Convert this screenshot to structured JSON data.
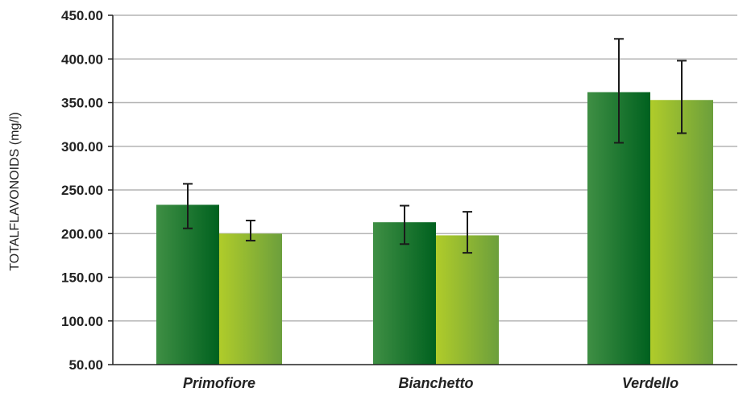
{
  "chart_data": {
    "type": "bar",
    "title": "",
    "xlabel": "",
    "ylabel": "TOTALFLAVONOIDS (mg/l)",
    "ylim": [
      50,
      450
    ],
    "yticks": [
      50,
      100,
      150,
      200,
      250,
      300,
      350,
      400,
      450
    ],
    "ytick_labels": [
      "50.00",
      "100.00",
      "150.00",
      "200.00",
      "250.00",
      "300.00",
      "350.00",
      "400.00",
      "450.00"
    ],
    "categories": [
      "Primofiore",
      "Bianchetto",
      "Verdello"
    ],
    "series": [
      {
        "values": [
          233,
          213,
          362
        ],
        "error_low": [
          206,
          188,
          304
        ],
        "error_high": [
          257,
          232,
          423
        ],
        "color_light": "#3f8f44",
        "color_dark": "#00611f"
      },
      {
        "values": [
          200,
          198,
          353
        ],
        "error_low": [
          192,
          178,
          315
        ],
        "error_high": [
          215,
          225,
          398
        ],
        "color_light": "#b0cc2a",
        "color_dark": "#6c9f3c"
      }
    ],
    "grid": true,
    "legend": "none",
    "category_label_style": "italic"
  }
}
